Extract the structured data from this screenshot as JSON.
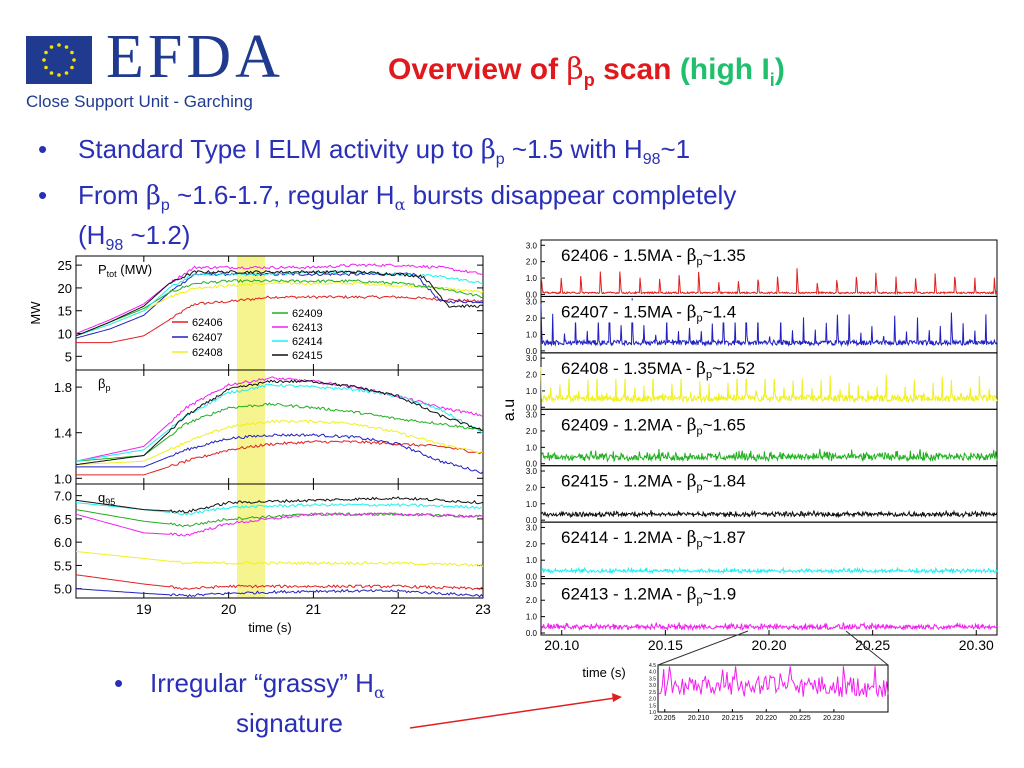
{
  "header": {
    "logo_text": "EFDA",
    "subtitle": "Close Support Unit - Garching",
    "title_part1": "Overview of ",
    "title_beta": "β",
    "title_beta_sub": "p",
    "title_part2": " scan",
    "title_green": "(high I",
    "title_green_sub": "i",
    "title_green_end": ")"
  },
  "colors": {
    "62406": "#e02020",
    "62407": "#2020c0",
    "62408": "#f0f020",
    "62409": "#20b020",
    "62413": "#f020f0",
    "62414": "#20f0f0",
    "62415": "#101010",
    "highlight": "#f4f27a",
    "title_red": "#e0191c",
    "title_green": "#1fbf6e",
    "bullet_blue": "#2a2fb8"
  },
  "bullets": {
    "b1": {
      "dot": "•",
      "pre": "Standard Type I ELM activity up to ",
      "beta": "β",
      "beta_sub": "p",
      "post": " ~1.5 with H",
      "h_sub": "98",
      "end": "~1"
    },
    "b2": {
      "dot": "•",
      "pre": "From ",
      "beta": "β",
      "beta_sub": "p",
      "mid": " ~1.6-1.7,  regular H",
      "alpha": "α",
      "post": " bursts disappear completely"
    },
    "b2_line2": {
      "pre": "(H",
      "sub": "98",
      "post": " ~1.2)"
    },
    "b3": {
      "dot": "•",
      "pre": "Irregular “grassy” H",
      "alpha": "α"
    },
    "b3_line2": "signature"
  },
  "chart_data": [
    {
      "type": "line",
      "panel": "ptot",
      "label": "P",
      "label_sub": "tot",
      "label_end": " (MW)",
      "ylabel": "MW",
      "ylim": [
        2,
        27
      ],
      "yticks": [
        "5",
        "10",
        "15",
        "20",
        "25"
      ],
      "ytick_values": [
        5,
        10,
        15,
        20,
        25
      ],
      "xlim": [
        18.2,
        23.0
      ],
      "legend": [
        "62406",
        "62407",
        "62408",
        "62409",
        "62413",
        "62414",
        "62415"
      ],
      "series": [
        {
          "name": "62406",
          "x": [
            18.2,
            18.6,
            19.0,
            19.3,
            19.6,
            20.0,
            20.5,
            21.0,
            21.5,
            22.0,
            22.5,
            23.0
          ],
          "y": [
            8,
            8,
            9.5,
            13,
            16.5,
            17,
            18,
            18,
            18,
            18,
            17.5,
            17
          ]
        },
        {
          "name": "62407",
          "x": [
            18.2,
            18.6,
            19.0,
            19.3,
            19.6,
            20.0,
            20.5,
            21.0,
            21.5,
            22.0,
            22.2,
            22.5,
            23.0
          ],
          "y": [
            9,
            11,
            14,
            19,
            23,
            23,
            23,
            23,
            23,
            23,
            23,
            17,
            17
          ]
        },
        {
          "name": "62408",
          "x": [
            18.2,
            18.6,
            19.0,
            19.3,
            19.6,
            20.0,
            20.5,
            21.0,
            21.5,
            22.0,
            22.5,
            23.0
          ],
          "y": [
            9.5,
            12,
            15,
            18,
            20,
            20.5,
            21,
            21,
            21,
            20.5,
            20,
            19
          ]
        },
        {
          "name": "62409",
          "x": [
            18.2,
            18.6,
            19.0,
            19.3,
            19.6,
            20.0,
            20.5,
            21.0,
            21.5,
            22.0,
            22.5,
            23.0
          ],
          "y": [
            9.5,
            12.5,
            15.5,
            19,
            21,
            21.5,
            21.5,
            21.5,
            21.5,
            21,
            20,
            18
          ]
        },
        {
          "name": "62413",
          "x": [
            18.2,
            18.6,
            19.0,
            19.3,
            19.6,
            20.0,
            20.5,
            21.0,
            21.5,
            22.0,
            22.5,
            23.0
          ],
          "y": [
            10,
            13,
            16.5,
            21,
            24.5,
            24.5,
            24.5,
            24.5,
            25,
            25,
            24.5,
            23
          ]
        },
        {
          "name": "62414",
          "x": [
            18.2,
            18.6,
            19.0,
            19.3,
            19.6,
            20.0,
            20.5,
            21.0,
            21.5,
            22.0,
            22.5,
            23.0
          ],
          "y": [
            9.5,
            12,
            15,
            20,
            23,
            23,
            23,
            23.5,
            23.5,
            23,
            22.5,
            21
          ]
        },
        {
          "name": "62415",
          "x": [
            18.2,
            18.6,
            19.0,
            19.3,
            19.6,
            20.0,
            20.5,
            21.0,
            21.5,
            22.0,
            22.3,
            22.6,
            23.0
          ],
          "y": [
            9.5,
            12.5,
            16,
            21,
            23.5,
            23.5,
            23.5,
            23.5,
            23.5,
            23,
            22.5,
            16,
            16
          ]
        }
      ]
    },
    {
      "type": "line",
      "panel": "betap",
      "label": "β",
      "label_sub": "p",
      "ylim": [
        0.95,
        1.95
      ],
      "yticks": [
        "1.0",
        "1.4",
        "1.8"
      ],
      "ytick_values": [
        1.0,
        1.4,
        1.8
      ],
      "xlim": [
        18.2,
        23.0
      ],
      "series": [
        {
          "name": "62406",
          "x": [
            18.2,
            19.0,
            19.5,
            20.0,
            20.5,
            21.0,
            21.5,
            22.0,
            22.5,
            23.0
          ],
          "y": [
            1.03,
            1.03,
            1.15,
            1.25,
            1.3,
            1.32,
            1.32,
            1.3,
            1.28,
            1.22
          ]
        },
        {
          "name": "62407",
          "x": [
            18.2,
            19.0,
            19.5,
            20.0,
            20.5,
            21.0,
            21.5,
            22.0,
            22.5,
            23.0
          ],
          "y": [
            1.1,
            1.1,
            1.25,
            1.35,
            1.38,
            1.38,
            1.36,
            1.3,
            1.15,
            1.05
          ]
        },
        {
          "name": "62408",
          "x": [
            18.2,
            19.0,
            19.5,
            20.0,
            20.5,
            21.0,
            21.5,
            22.0,
            22.5,
            23.0
          ],
          "y": [
            1.12,
            1.15,
            1.32,
            1.45,
            1.5,
            1.5,
            1.48,
            1.4,
            1.3,
            1.22
          ]
        },
        {
          "name": "62409",
          "x": [
            18.2,
            19.0,
            19.5,
            20.0,
            20.5,
            21.0,
            21.5,
            22.0,
            22.5,
            23.0
          ],
          "y": [
            1.15,
            1.2,
            1.48,
            1.62,
            1.65,
            1.62,
            1.58,
            1.52,
            1.48,
            1.42
          ]
        },
        {
          "name": "62413",
          "x": [
            18.2,
            19.0,
            19.5,
            20.0,
            20.5,
            21.0,
            21.5,
            22.0,
            22.5,
            23.0
          ],
          "y": [
            1.15,
            1.28,
            1.62,
            1.82,
            1.88,
            1.85,
            1.8,
            1.72,
            1.62,
            1.55
          ]
        },
        {
          "name": "62414",
          "x": [
            18.2,
            19.0,
            19.5,
            20.0,
            20.5,
            21.0,
            21.5,
            22.0,
            22.5,
            23.0
          ],
          "y": [
            1.15,
            1.25,
            1.55,
            1.75,
            1.82,
            1.8,
            1.78,
            1.72,
            1.6,
            1.4
          ]
        },
        {
          "name": "62415",
          "x": [
            18.2,
            19.0,
            19.5,
            20.0,
            20.5,
            21.0,
            21.5,
            22.0,
            22.5,
            23.0
          ],
          "y": [
            1.12,
            1.2,
            1.55,
            1.78,
            1.85,
            1.85,
            1.8,
            1.72,
            1.55,
            1.42
          ]
        }
      ]
    },
    {
      "type": "line",
      "panel": "q95",
      "label": "q",
      "label_sub": "95",
      "ylim": [
        4.8,
        7.25
      ],
      "yticks": [
        "5.0",
        "5.5",
        "6.0",
        "6.5",
        "7.0"
      ],
      "ytick_values": [
        5.0,
        5.5,
        6.0,
        6.5,
        7.0
      ],
      "xlim": [
        18.2,
        23.0
      ],
      "xticks": [
        "19",
        "20",
        "21",
        "22",
        "23"
      ],
      "xtick_values": [
        19,
        20,
        21,
        22,
        23
      ],
      "xlabel": "time (s)",
      "series": [
        {
          "name": "62406",
          "x": [
            18.2,
            19.0,
            19.5,
            20.0,
            21.0,
            22.0,
            23.0
          ],
          "y": [
            5.3,
            5.1,
            5.0,
            5.05,
            5.05,
            5.05,
            5.0
          ]
        },
        {
          "name": "62407",
          "x": [
            18.2,
            19.0,
            19.5,
            20.0,
            21.0,
            22.0,
            22.5,
            23.0
          ],
          "y": [
            5.0,
            4.9,
            4.85,
            4.9,
            4.95,
            4.95,
            4.9,
            4.85
          ]
        },
        {
          "name": "62408",
          "x": [
            18.2,
            19.0,
            19.5,
            20.0,
            21.0,
            22.0,
            23.0
          ],
          "y": [
            5.8,
            5.65,
            5.55,
            5.55,
            5.55,
            5.55,
            5.5
          ]
        },
        {
          "name": "62409",
          "x": [
            18.2,
            19.0,
            19.5,
            20.0,
            21.0,
            22.0,
            23.0
          ],
          "y": [
            6.7,
            6.45,
            6.35,
            6.5,
            6.6,
            6.6,
            6.55
          ]
        },
        {
          "name": "62413",
          "x": [
            18.2,
            19.0,
            19.5,
            20.0,
            21.0,
            22.0,
            23.0
          ],
          "y": [
            6.6,
            6.2,
            6.15,
            6.4,
            6.6,
            6.6,
            6.55
          ]
        },
        {
          "name": "62414",
          "x": [
            18.2,
            19.0,
            19.5,
            20.0,
            21.0,
            22.0,
            23.0
          ],
          "y": [
            6.85,
            6.7,
            6.6,
            6.75,
            6.8,
            6.8,
            6.75
          ]
        },
        {
          "name": "62415",
          "x": [
            18.2,
            19.0,
            19.5,
            20.0,
            21.0,
            22.0,
            23.0
          ],
          "y": [
            6.9,
            6.7,
            6.65,
            6.85,
            6.9,
            6.95,
            6.85
          ]
        }
      ]
    },
    {
      "type": "line",
      "panel": "halpha",
      "ylabel": "a.u",
      "xlabel": "time (s)",
      "xlim": [
        20.09,
        20.31
      ],
      "xticks": [
        "20.10",
        "20.15",
        "20.20",
        "20.25",
        "20.30"
      ],
      "xtick_values": [
        20.1,
        20.15,
        20.2,
        20.25,
        20.3
      ],
      "yticks": [
        "0.0",
        "1.0",
        "2.0",
        "3.0"
      ],
      "ytick_values": [
        0.0,
        1.0,
        2.0,
        3.0
      ],
      "ylim": [
        0,
        3.2
      ],
      "series": [
        {
          "name": "62406",
          "shot": "62406",
          "current": "1.5MA",
          "beta": "~1.35",
          "mode": "elm",
          "period": 0.0095,
          "peak": 1.3,
          "base": 0.1,
          "noise": 0.05
        },
        {
          "name": "62407",
          "shot": "62407",
          "current": "1.5MA",
          "beta": "~1.4",
          "mode": "elm",
          "period": 0.0055,
          "peak": 2.1,
          "base": 0.5,
          "noise": 0.15
        },
        {
          "name": "62408",
          "shot": "62408",
          "current": "1.35MA",
          "beta": "~1.52",
          "mode": "elm",
          "period": 0.0045,
          "peak": 1.5,
          "base": 0.55,
          "noise": 0.2
        },
        {
          "name": "62409",
          "shot": "62409",
          "current": "1.2MA",
          "beta": "~1.65",
          "mode": "grassy",
          "period": 0.0025,
          "peak": 0.5,
          "base": 0.3,
          "noise": 0.15
        },
        {
          "name": "62415",
          "shot": "62415",
          "current": "1.2MA",
          "beta": "~1.84",
          "mode": "grassy",
          "period": 0.002,
          "peak": 0.25,
          "base": 0.3,
          "noise": 0.1
        },
        {
          "name": "62414",
          "shot": "62414",
          "current": "1.2MA",
          "beta": "~1.87",
          "mode": "grassy",
          "period": 0.002,
          "peak": 0.2,
          "base": 0.3,
          "noise": 0.07
        },
        {
          "name": "62413",
          "shot": "62413",
          "current": "1.2MA",
          "beta": "~1.9",
          "mode": "grassy",
          "period": 0.002,
          "peak": 0.3,
          "base": 0.3,
          "noise": 0.1
        }
      ]
    },
    {
      "type": "line",
      "panel": "inset",
      "series_name": "62413",
      "xlim": [
        20.204,
        20.238
      ],
      "xticks": [
        "20.205",
        "20.210",
        "20.215",
        "20.220",
        "20.225",
        "20.230"
      ],
      "xtick_values": [
        20.205,
        20.21,
        20.215,
        20.22,
        20.225,
        20.23
      ],
      "ylim": [
        1.0,
        4.5
      ],
      "yticks": [
        "1.0",
        "1.5",
        "2.0",
        "2.5",
        "3.0",
        "3.5",
        "4.0",
        "4.5"
      ],
      "ytick_values": [
        1.0,
        1.5,
        2.0,
        2.5,
        3.0,
        3.5,
        4.0,
        4.5
      ]
    }
  ]
}
